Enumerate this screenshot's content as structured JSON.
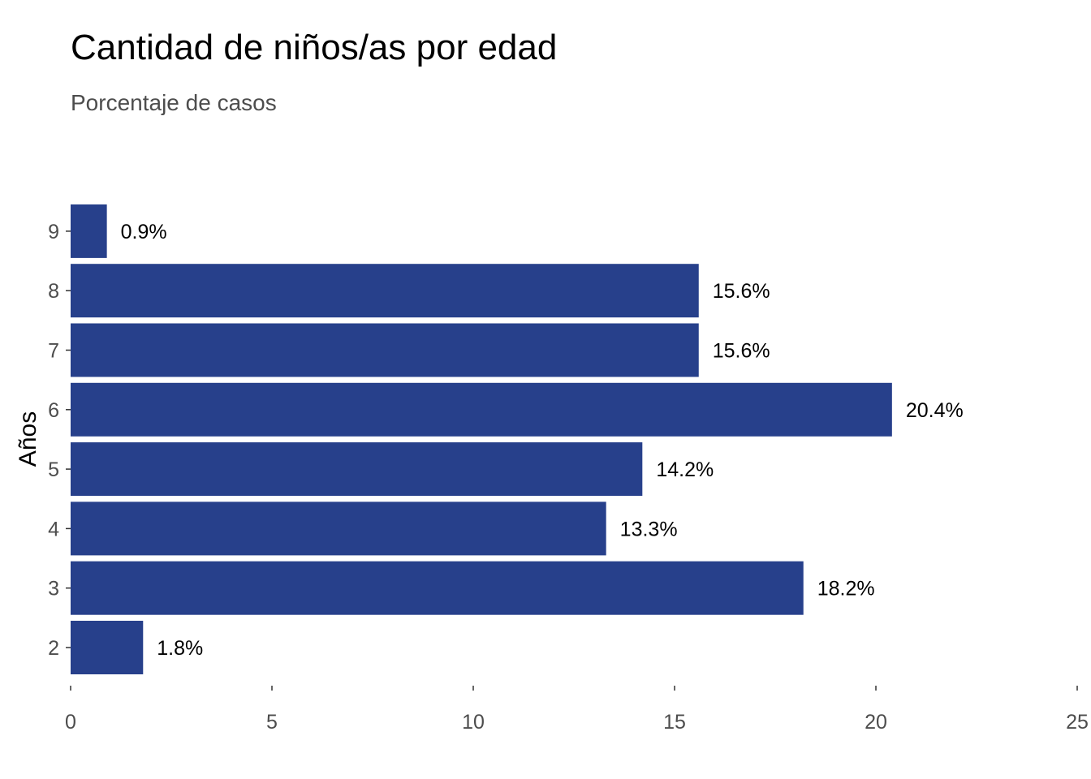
{
  "chart_data": {
    "type": "bar",
    "orientation": "horizontal",
    "title": "Cantidad de niños/as por edad",
    "subtitle": "Porcentaje de casos",
    "xlabel": "",
    "ylabel": "Años",
    "categories": [
      "2",
      "3",
      "4",
      "5",
      "6",
      "7",
      "8",
      "9"
    ],
    "values": [
      1.8,
      18.2,
      13.3,
      14.2,
      20.4,
      15.6,
      15.6,
      0.9
    ],
    "data_labels": [
      "1.8%",
      "18.2%",
      "13.3%",
      "14.2%",
      "20.4%",
      "15.6%",
      "15.6%",
      "0.9%"
    ],
    "xlim": [
      0,
      25
    ],
    "x_ticks": [
      0,
      5,
      10,
      15,
      20,
      25
    ],
    "x_tick_labels": [
      "0",
      "5",
      "10",
      "15",
      "20",
      "25"
    ],
    "bar_color": "#27408b",
    "grid": false,
    "legend": "none"
  }
}
